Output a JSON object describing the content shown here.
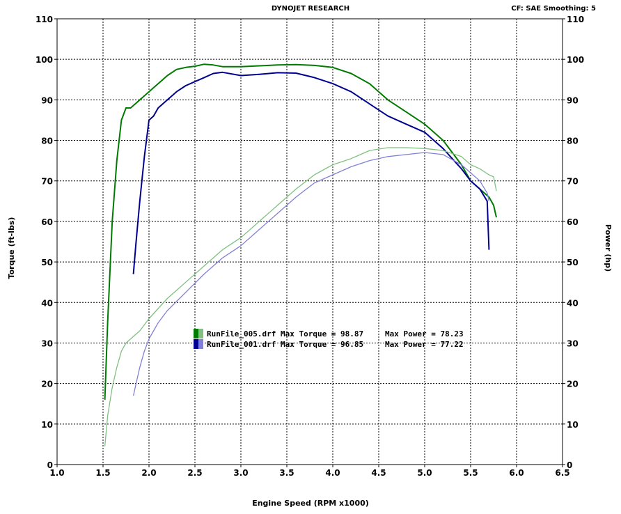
{
  "header": {
    "title": "DYNOJET RESEARCH",
    "settings": "CF: SAE  Smoothing: 5"
  },
  "chart_data": {
    "type": "line",
    "xlabel": "Engine Speed (RPM x1000)",
    "ylabel_left": "Torque (ft-lbs)",
    "ylabel_right": "Power (hp)",
    "xlim": [
      1.0,
      6.5
    ],
    "ylim": [
      0,
      110
    ],
    "x_ticks": [
      "1.0",
      "1.5",
      "2.0",
      "2.5",
      "3.0",
      "3.5",
      "4.0",
      "4.5",
      "5.0",
      "5.5",
      "6.0",
      "6.5"
    ],
    "y_ticks": [
      "0",
      "10",
      "20",
      "30",
      "40",
      "50",
      "60",
      "70",
      "80",
      "90",
      "100",
      "110"
    ],
    "grid": true,
    "legend_position": "center",
    "legend": [
      {
        "file": "RunFile_005.drf",
        "text": "RunFile_005.drf Max Torque = 98.87",
        "power_text": "Max Power = 78.23",
        "color_dark": "#007a00",
        "color_light": "#80c080"
      },
      {
        "file": "RunFile_001.drf",
        "text": "RunFile_001.drf Max Torque = 96.85",
        "power_text": "Max Power = 77.22",
        "color_dark": "#000090",
        "color_light": "#8080d8"
      }
    ],
    "series": [
      {
        "name": "RunFile_005.drf",
        "kind": "torque",
        "color": "#007a00",
        "x": [
          1.52,
          1.55,
          1.6,
          1.65,
          1.7,
          1.75,
          1.8,
          1.85,
          1.9,
          2.0,
          2.1,
          2.2,
          2.3,
          2.4,
          2.5,
          2.6,
          2.7,
          2.8,
          3.0,
          3.2,
          3.4,
          3.6,
          3.8,
          4.0,
          4.2,
          4.4,
          4.5,
          4.6,
          4.8,
          5.0,
          5.2,
          5.4,
          5.5,
          5.6,
          5.7,
          5.75,
          5.78
        ],
        "y": [
          16,
          35,
          60,
          75,
          85,
          88,
          88,
          89,
          90,
          92,
          94,
          96,
          97.5,
          98,
          98.3,
          98.8,
          98.6,
          98.2,
          98.2,
          98.4,
          98.6,
          98.7,
          98.5,
          98,
          96.5,
          94,
          92,
          90,
          87,
          84,
          80,
          74,
          70,
          68,
          66,
          64,
          61
        ]
      },
      {
        "name": "RunFile_001.drf",
        "kind": "torque",
        "color": "#000090",
        "x": [
          1.83,
          1.86,
          1.9,
          1.95,
          2.0,
          2.05,
          2.1,
          2.2,
          2.3,
          2.4,
          2.5,
          2.6,
          2.7,
          2.8,
          3.0,
          3.2,
          3.4,
          3.6,
          3.8,
          4.0,
          4.2,
          4.4,
          4.6,
          4.8,
          5.0,
          5.2,
          5.4,
          5.5,
          5.6,
          5.68,
          5.7
        ],
        "y": [
          47,
          55,
          65,
          76,
          85,
          86,
          88,
          90,
          92,
          93.5,
          94.5,
          95.5,
          96.5,
          96.8,
          96,
          96.3,
          96.7,
          96.6,
          95.5,
          94,
          92,
          89,
          86,
          84,
          82,
          78,
          73,
          70,
          68,
          65,
          53
        ]
      },
      {
        "name": "RunFile_005.drf",
        "kind": "power",
        "color": "#80c080",
        "x": [
          1.52,
          1.55,
          1.6,
          1.65,
          1.7,
          1.75,
          1.8,
          1.9,
          2.0,
          2.2,
          2.4,
          2.6,
          2.8,
          3.0,
          3.2,
          3.4,
          3.6,
          3.8,
          4.0,
          4.2,
          4.4,
          4.6,
          4.8,
          5.0,
          5.2,
          5.4,
          5.5,
          5.6,
          5.7,
          5.75,
          5.78
        ],
        "y": [
          4.5,
          12,
          19,
          24,
          28,
          30,
          31,
          33,
          36,
          41,
          45,
          49,
          53,
          56,
          60,
          64,
          68,
          71.5,
          74,
          75.5,
          77.5,
          78.2,
          78.2,
          78,
          77.5,
          76,
          74,
          73,
          71.5,
          71,
          67.5
        ]
      },
      {
        "name": "RunFile_001.drf",
        "kind": "power",
        "color": "#8080d8",
        "x": [
          1.83,
          1.86,
          1.9,
          1.95,
          2.0,
          2.05,
          2.1,
          2.2,
          2.4,
          2.6,
          2.8,
          3.0,
          3.2,
          3.4,
          3.6,
          3.8,
          4.0,
          4.2,
          4.4,
          4.6,
          4.8,
          5.0,
          5.2,
          5.4,
          5.5,
          5.6,
          5.68,
          5.7
        ],
        "y": [
          17,
          20,
          24,
          28,
          31,
          33,
          35,
          38,
          42.5,
          47,
          51,
          54,
          58,
          62,
          66,
          69.5,
          71.5,
          73.5,
          75,
          76,
          76.5,
          77,
          76.5,
          74,
          72,
          70,
          67,
          65
        ]
      }
    ]
  }
}
